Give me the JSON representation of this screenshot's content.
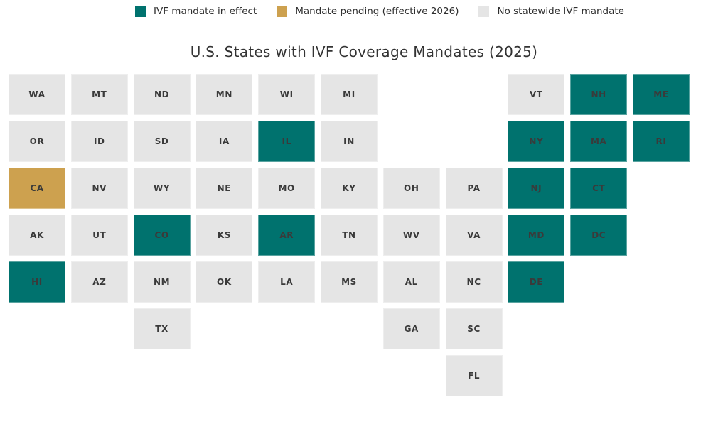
{
  "title": "U.S. States with IVF Coverage Mandates (2025)",
  "legend": {
    "items": [
      {
        "key": "mandate",
        "label": "IVF mandate in effect",
        "color": "#00726E"
      },
      {
        "key": "pending",
        "label": "Mandate pending (effective 2026)",
        "color": "#CDA14F"
      },
      {
        "key": "none",
        "label": "No statewide IVF mandate",
        "color": "#E5E5E5"
      }
    ]
  },
  "colors": {
    "mandate": "#00726E",
    "pending": "#CDA14F",
    "none": "#E5E5E5",
    "tile_label": "#3A3A3A",
    "title_text": "#333333",
    "background": "#FFFFFF"
  },
  "chart_data": {
    "type": "heatmap",
    "subtype": "us-state-tile-grid-map",
    "title": "U.S. States with IVF Coverage Mandates (2025)",
    "legend_position": "top-center",
    "grid": {
      "rows": 7,
      "columns": 11
    },
    "categories": [
      "IVF mandate in effect",
      "Mandate pending (effective 2026)",
      "No statewide IVF mandate"
    ],
    "category_colors": {
      "IVF mandate in effect": "#00726E",
      "Mandate pending (effective 2026)": "#CDA14F",
      "No statewide IVF mandate": "#E5E5E5"
    },
    "states_in_effect": [
      "NH",
      "ME",
      "IL",
      "NY",
      "MA",
      "RI",
      "NJ",
      "CT",
      "CO",
      "AR",
      "MD",
      "DC",
      "HI",
      "DE"
    ],
    "states_pending": [
      "CA"
    ],
    "states": [
      {
        "abbr": "WA",
        "row": 1,
        "col": 1,
        "status": "none"
      },
      {
        "abbr": "MT",
        "row": 1,
        "col": 2,
        "status": "none"
      },
      {
        "abbr": "ND",
        "row": 1,
        "col": 3,
        "status": "none"
      },
      {
        "abbr": "MN",
        "row": 1,
        "col": 4,
        "status": "none"
      },
      {
        "abbr": "WI",
        "row": 1,
        "col": 5,
        "status": "none"
      },
      {
        "abbr": "MI",
        "row": 1,
        "col": 6,
        "status": "none"
      },
      {
        "abbr": "VT",
        "row": 1,
        "col": 9,
        "status": "none"
      },
      {
        "abbr": "NH",
        "row": 1,
        "col": 10,
        "status": "mandate"
      },
      {
        "abbr": "ME",
        "row": 1,
        "col": 11,
        "status": "mandate"
      },
      {
        "abbr": "OR",
        "row": 2,
        "col": 1,
        "status": "none"
      },
      {
        "abbr": "ID",
        "row": 2,
        "col": 2,
        "status": "none"
      },
      {
        "abbr": "SD",
        "row": 2,
        "col": 3,
        "status": "none"
      },
      {
        "abbr": "IA",
        "row": 2,
        "col": 4,
        "status": "none"
      },
      {
        "abbr": "IL",
        "row": 2,
        "col": 5,
        "status": "mandate"
      },
      {
        "abbr": "IN",
        "row": 2,
        "col": 6,
        "status": "none"
      },
      {
        "abbr": "NY",
        "row": 2,
        "col": 9,
        "status": "mandate"
      },
      {
        "abbr": "MA",
        "row": 2,
        "col": 10,
        "status": "mandate"
      },
      {
        "abbr": "RI",
        "row": 2,
        "col": 11,
        "status": "mandate"
      },
      {
        "abbr": "CA",
        "row": 3,
        "col": 1,
        "status": "pending"
      },
      {
        "abbr": "NV",
        "row": 3,
        "col": 2,
        "status": "none"
      },
      {
        "abbr": "WY",
        "row": 3,
        "col": 3,
        "status": "none"
      },
      {
        "abbr": "NE",
        "row": 3,
        "col": 4,
        "status": "none"
      },
      {
        "abbr": "MO",
        "row": 3,
        "col": 5,
        "status": "none"
      },
      {
        "abbr": "KY",
        "row": 3,
        "col": 6,
        "status": "none"
      },
      {
        "abbr": "OH",
        "row": 3,
        "col": 7,
        "status": "none"
      },
      {
        "abbr": "PA",
        "row": 3,
        "col": 8,
        "status": "none"
      },
      {
        "abbr": "NJ",
        "row": 3,
        "col": 9,
        "status": "mandate"
      },
      {
        "abbr": "CT",
        "row": 3,
        "col": 10,
        "status": "mandate"
      },
      {
        "abbr": "AK",
        "row": 4,
        "col": 1,
        "status": "none"
      },
      {
        "abbr": "UT",
        "row": 4,
        "col": 2,
        "status": "none"
      },
      {
        "abbr": "CO",
        "row": 4,
        "col": 3,
        "status": "mandate"
      },
      {
        "abbr": "KS",
        "row": 4,
        "col": 4,
        "status": "none"
      },
      {
        "abbr": "AR",
        "row": 4,
        "col": 5,
        "status": "mandate"
      },
      {
        "abbr": "TN",
        "row": 4,
        "col": 6,
        "status": "none"
      },
      {
        "abbr": "WV",
        "row": 4,
        "col": 7,
        "status": "none"
      },
      {
        "abbr": "VA",
        "row": 4,
        "col": 8,
        "status": "none"
      },
      {
        "abbr": "MD",
        "row": 4,
        "col": 9,
        "status": "mandate"
      },
      {
        "abbr": "DC",
        "row": 4,
        "col": 10,
        "status": "mandate"
      },
      {
        "abbr": "HI",
        "row": 5,
        "col": 1,
        "status": "mandate"
      },
      {
        "abbr": "AZ",
        "row": 5,
        "col": 2,
        "status": "none"
      },
      {
        "abbr": "NM",
        "row": 5,
        "col": 3,
        "status": "none"
      },
      {
        "abbr": "OK",
        "row": 5,
        "col": 4,
        "status": "none"
      },
      {
        "abbr": "LA",
        "row": 5,
        "col": 5,
        "status": "none"
      },
      {
        "abbr": "MS",
        "row": 5,
        "col": 6,
        "status": "none"
      },
      {
        "abbr": "AL",
        "row": 5,
        "col": 7,
        "status": "none"
      },
      {
        "abbr": "NC",
        "row": 5,
        "col": 8,
        "status": "none"
      },
      {
        "abbr": "DE",
        "row": 5,
        "col": 9,
        "status": "mandate"
      },
      {
        "abbr": "TX",
        "row": 6,
        "col": 3,
        "status": "none"
      },
      {
        "abbr": "GA",
        "row": 6,
        "col": 7,
        "status": "none"
      },
      {
        "abbr": "SC",
        "row": 6,
        "col": 8,
        "status": "none"
      },
      {
        "abbr": "FL",
        "row": 7,
        "col": 8,
        "status": "none"
      }
    ]
  }
}
